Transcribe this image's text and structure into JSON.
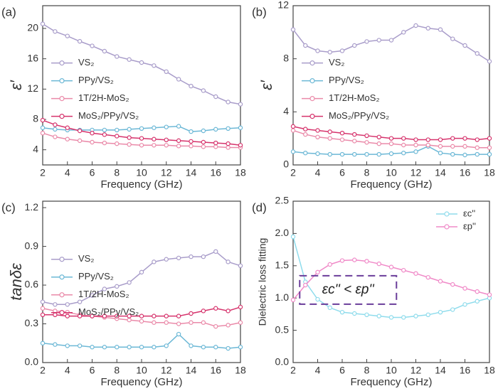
{
  "chart_data": [
    {
      "type": "line",
      "label": "(a)",
      "x_label": "Frequency (GHz)",
      "y_label": "ε′",
      "x": [
        2,
        3,
        4,
        5,
        6,
        7,
        8,
        9,
        10,
        11,
        12,
        13,
        14,
        15,
        16,
        17,
        18
      ],
      "xlim": [
        2,
        18
      ],
      "xticks": [
        2,
        4,
        6,
        8,
        10,
        12,
        14,
        16,
        18
      ],
      "ylim": [
        2,
        23
      ],
      "yticks": [
        4,
        8,
        12,
        16,
        20
      ],
      "legend": "left",
      "series": [
        {
          "name": "VS₂",
          "color": "#a99dca",
          "values": [
            20.6,
            19.6,
            19.0,
            18.3,
            17.7,
            17.0,
            16.3,
            15.9,
            15.5,
            15.1,
            14.3,
            13.3,
            12.4,
            11.8,
            11.0,
            10.3,
            10.0
          ]
        },
        {
          "name": "PPy/VS₂",
          "color": "#6cb8d6",
          "values": [
            6.9,
            6.7,
            6.6,
            6.6,
            6.6,
            6.6,
            6.6,
            6.7,
            6.8,
            6.9,
            7.0,
            7.1,
            6.4,
            6.5,
            6.7,
            6.8,
            6.9
          ]
        },
        {
          "name": "1T/2H-MoS₂",
          "color": "#ea8aa9",
          "values": [
            6.2,
            5.7,
            5.4,
            5.2,
            5.0,
            4.9,
            4.8,
            4.7,
            4.6,
            4.6,
            4.6,
            4.5,
            4.5,
            4.4,
            4.4,
            4.3,
            4.3
          ]
        },
        {
          "name": "MoS₂/PPy/VS₂",
          "color": "#d6336c",
          "values": [
            7.9,
            7.3,
            6.9,
            6.5,
            6.2,
            6.0,
            5.8,
            5.6,
            5.5,
            5.4,
            5.3,
            5.2,
            5.1,
            5.0,
            4.9,
            4.8,
            4.6
          ]
        }
      ]
    },
    {
      "type": "line",
      "label": "(b)",
      "x_label": "Frequency (GHz)",
      "y_label": "ε′",
      "x": [
        2,
        3,
        4,
        5,
        6,
        7,
        8,
        9,
        10,
        11,
        12,
        13,
        14,
        15,
        16,
        17,
        18
      ],
      "xlim": [
        2,
        18
      ],
      "xticks": [
        2,
        4,
        6,
        8,
        10,
        12,
        14,
        16,
        18
      ],
      "ylim": [
        0,
        12
      ],
      "yticks": [
        0,
        4,
        8,
        12
      ],
      "legend": "left",
      "series": [
        {
          "name": "VS₂",
          "color": "#a99dca",
          "values": [
            10.2,
            9.0,
            8.6,
            8.5,
            8.6,
            9.0,
            9.3,
            9.4,
            9.4,
            10.0,
            10.5,
            10.3,
            10.2,
            9.5,
            9.0,
            8.4,
            7.8
          ]
        },
        {
          "name": "PPy/VS₂",
          "color": "#6cb8d6",
          "values": [
            1.0,
            0.9,
            0.85,
            0.8,
            0.8,
            0.8,
            0.8,
            0.8,
            0.85,
            0.9,
            1.0,
            1.4,
            0.9,
            0.8,
            0.75,
            0.8,
            0.8
          ]
        },
        {
          "name": "1T/2H-MoS₂",
          "color": "#ea8aa9",
          "values": [
            2.6,
            2.3,
            2.1,
            2.0,
            1.9,
            1.8,
            1.7,
            1.6,
            1.6,
            1.5,
            1.5,
            1.5,
            1.4,
            1.4,
            1.4,
            1.3,
            1.3
          ]
        },
        {
          "name": "MoS₂/PPy/VS₂",
          "color": "#d6336c",
          "values": [
            2.9,
            2.7,
            2.6,
            2.5,
            2.4,
            2.3,
            2.2,
            2.1,
            2.0,
            2.0,
            1.9,
            1.9,
            1.9,
            2.0,
            2.0,
            1.9,
            2.0
          ]
        }
      ]
    },
    {
      "type": "line",
      "label": "(c)",
      "x_label": "Frequency (GHz)",
      "y_label": "tanδε",
      "x": [
        2,
        3,
        4,
        5,
        6,
        7,
        8,
        9,
        10,
        11,
        12,
        13,
        14,
        15,
        16,
        17,
        18
      ],
      "xlim": [
        2,
        18
      ],
      "xticks": [
        2,
        4,
        6,
        8,
        10,
        12,
        14,
        16,
        18
      ],
      "ylim": [
        0,
        1.25
      ],
      "yticks": [
        {
          "value": 0,
          "label": "0.0"
        },
        0.3,
        0.6,
        0.9,
        1.2
      ],
      "legend": "left",
      "series": [
        {
          "name": "VS₂",
          "color": "#a99dca",
          "values": [
            0.47,
            0.45,
            0.45,
            0.47,
            0.52,
            0.57,
            0.59,
            0.62,
            0.7,
            0.78,
            0.8,
            0.81,
            0.82,
            0.82,
            0.86,
            0.78,
            0.75
          ]
        },
        {
          "name": "PPy/VS₂",
          "color": "#6cb8d6",
          "values": [
            0.15,
            0.14,
            0.13,
            0.13,
            0.12,
            0.12,
            0.12,
            0.12,
            0.12,
            0.12,
            0.13,
            0.22,
            0.13,
            0.12,
            0.12,
            0.11,
            0.12
          ]
        },
        {
          "name": "1T/2H-MoS₂",
          "color": "#ea8aa9",
          "values": [
            0.42,
            0.4,
            0.39,
            0.37,
            0.36,
            0.35,
            0.34,
            0.33,
            0.32,
            0.31,
            0.31,
            0.3,
            0.31,
            0.31,
            0.28,
            0.29,
            0.31
          ]
        },
        {
          "name": "MoS₂/PPy/VS₂",
          "color": "#d6336c",
          "values": [
            0.37,
            0.37,
            0.36,
            0.36,
            0.36,
            0.36,
            0.36,
            0.36,
            0.36,
            0.36,
            0.36,
            0.36,
            0.38,
            0.4,
            0.42,
            0.4,
            0.43
          ]
        }
      ]
    },
    {
      "type": "line",
      "label": "(d)",
      "x_label": "Frequency (GHz)",
      "y_label": "Dielectric loss fitting",
      "annotation": "εc'' < εp''",
      "x": [
        2,
        3,
        4,
        5,
        6,
        7,
        8,
        9,
        10,
        11,
        12,
        13,
        14,
        15,
        16,
        17,
        18
      ],
      "xlim": [
        2,
        18
      ],
      "xticks": [
        2,
        4,
        6,
        8,
        10,
        12,
        14,
        16,
        18
      ],
      "ylim": [
        0,
        2.5
      ],
      "yticks": [
        {
          "value": 0,
          "label": "0.0"
        },
        0.5,
        {
          "value": 1,
          "label": "1.0"
        },
        1.5,
        {
          "value": 2,
          "label": "2.0"
        },
        2.5
      ],
      "legend": "upper right",
      "series": [
        {
          "name": "εc''",
          "color": "#8fdcec",
          "values": [
            1.95,
            1.25,
            0.98,
            0.85,
            0.78,
            0.76,
            0.74,
            0.72,
            0.7,
            0.7,
            0.72,
            0.74,
            0.78,
            0.82,
            0.9,
            0.95,
            1.0
          ]
        },
        {
          "name": "εp''",
          "color": "#f08ac8",
          "values": [
            0.97,
            1.2,
            1.4,
            1.52,
            1.58,
            1.59,
            1.57,
            1.53,
            1.48,
            1.43,
            1.38,
            1.32,
            1.26,
            1.21,
            1.15,
            1.1,
            1.05
          ]
        }
      ]
    }
  ]
}
